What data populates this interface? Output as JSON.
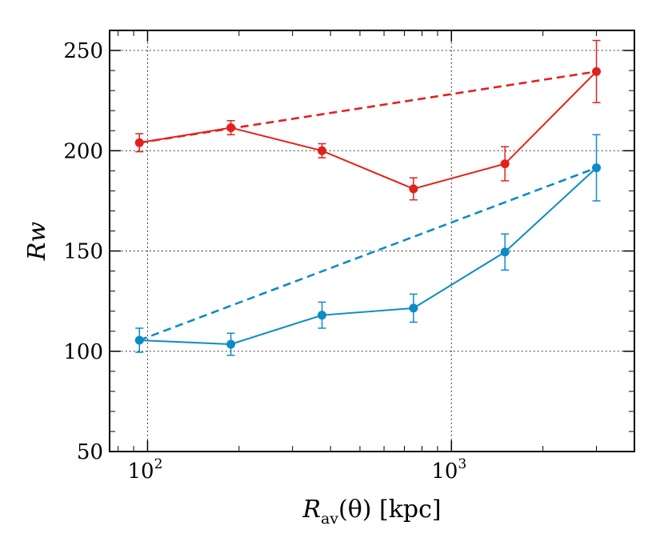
{
  "chart_data": {
    "type": "line",
    "title": "",
    "xscale": "log",
    "xlim": [
      75,
      4000
    ],
    "ylim": [
      50,
      260
    ],
    "grid": true,
    "xlabel": {
      "main": "R",
      "sub": "av",
      "rest": "(θ) [kpc]"
    },
    "ylabel": "Rw",
    "xticks": [
      {
        "value": 100,
        "base": "10",
        "exp": "2"
      },
      {
        "value": 1000,
        "base": "10",
        "exp": "3"
      }
    ],
    "yticks": [
      50,
      100,
      150,
      200,
      250
    ],
    "series": [
      {
        "name": "red-solid",
        "color": "#e3211c",
        "style": "solid",
        "x": [
          94,
          188,
          375,
          750,
          1500,
          3000
        ],
        "y": [
          204,
          211.5,
          200,
          181,
          193.5,
          239.5
        ],
        "err": [
          4.5,
          3.5,
          3.5,
          5.5,
          8.5,
          15.5
        ]
      },
      {
        "name": "red-dashed",
        "color": "#e3211c",
        "style": "dashed",
        "x": [
          94,
          3000
        ],
        "y": [
          204,
          239.5
        ]
      },
      {
        "name": "blue-solid",
        "color": "#0c8cc6",
        "style": "solid",
        "x": [
          94,
          188,
          375,
          750,
          1500,
          3000
        ],
        "y": [
          105.5,
          103.5,
          118,
          121.5,
          149.5,
          191.5
        ],
        "err": [
          6,
          5.5,
          6.5,
          7,
          9,
          16.5
        ]
      },
      {
        "name": "blue-dashed",
        "color": "#0c8cc6",
        "style": "dashed",
        "x": [
          94,
          3000
        ],
        "y": [
          105.5,
          191.5
        ]
      }
    ]
  }
}
